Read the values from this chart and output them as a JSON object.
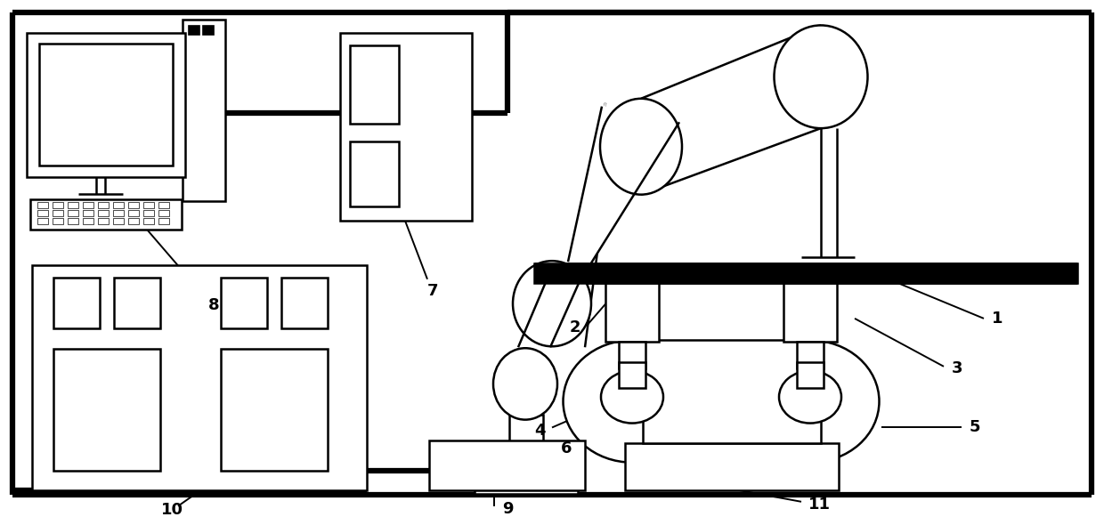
{
  "bg": "#ffffff",
  "lc": "#000000",
  "lw": 1.8,
  "lwt": 4.5,
  "fig_w": 12.4,
  "fig_h": 5.81,
  "dpi": 100,
  "ann_lw": 1.4,
  "fs": 13
}
